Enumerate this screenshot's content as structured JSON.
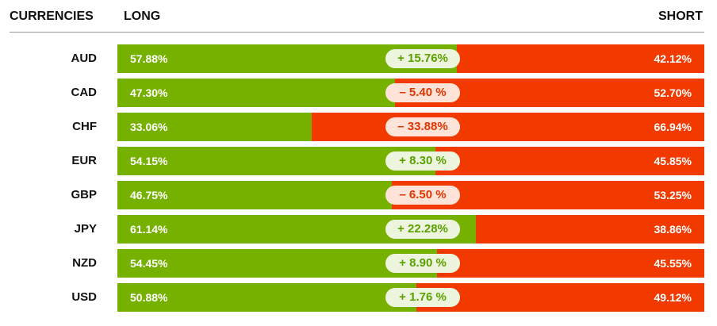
{
  "headers": {
    "currencies": "CURRENCIES",
    "long": "LONG",
    "short": "SHORT"
  },
  "colors": {
    "long": "#76b100",
    "short": "#f23a00",
    "positive_text": "#5aa100",
    "negative_text": "#e03500"
  },
  "chart_data": {
    "type": "bar",
    "categories": [
      "AUD",
      "CAD",
      "CHF",
      "EUR",
      "GBP",
      "JPY",
      "NZD",
      "USD"
    ],
    "series": [
      {
        "name": "LONG",
        "values": [
          57.88,
          47.3,
          33.06,
          54.15,
          46.75,
          61.14,
          54.45,
          50.88
        ]
      },
      {
        "name": "SHORT",
        "values": [
          42.12,
          52.7,
          66.94,
          45.85,
          53.25,
          38.86,
          45.55,
          49.12
        ]
      }
    ],
    "rows": [
      {
        "currency": "AUD",
        "long": "57.88%",
        "short": "42.12%",
        "net": "+ 15.76%",
        "net_value": 15.76
      },
      {
        "currency": "CAD",
        "long": "47.30%",
        "short": "52.70%",
        "net": "– 5.40 %",
        "net_value": -5.4
      },
      {
        "currency": "CHF",
        "long": "33.06%",
        "short": "66.94%",
        "net": "– 33.88%",
        "net_value": -33.88
      },
      {
        "currency": "EUR",
        "long": "54.15%",
        "short": "45.85%",
        "net": "+ 8.30 %",
        "net_value": 8.3
      },
      {
        "currency": "GBP",
        "long": "46.75%",
        "short": "53.25%",
        "net": "– 6.50 %",
        "net_value": -6.5
      },
      {
        "currency": "JPY",
        "long": "61.14%",
        "short": "38.86%",
        "net": "+ 22.28%",
        "net_value": 22.28
      },
      {
        "currency": "NZD",
        "long": "54.45%",
        "short": "45.55%",
        "net": "+ 8.90 %",
        "net_value": 8.9
      },
      {
        "currency": "USD",
        "long": "50.88%",
        "short": "49.12%",
        "net": "+ 1.76 %",
        "net_value": 1.76
      }
    ]
  }
}
